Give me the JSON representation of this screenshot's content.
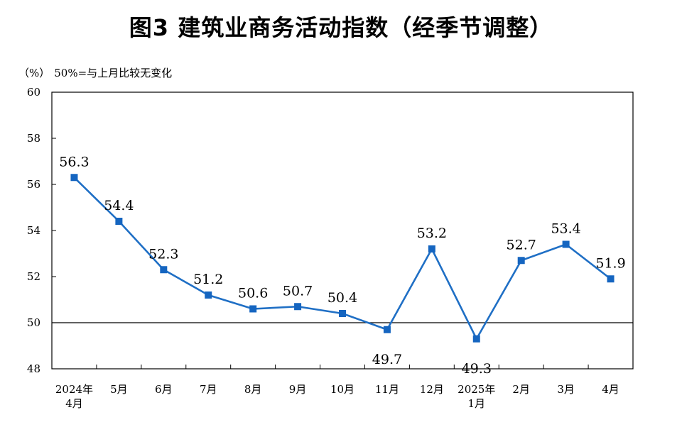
{
  "title": "图3  建筑业商务活动指数（经季节调整）",
  "unit_label": "（%）",
  "baseline_note": "50%=与上月比较无变化",
  "colors": {
    "line": "#1f6fc5",
    "marker": "#1565c0",
    "axis": "#000000"
  },
  "chart_data": {
    "type": "line",
    "categories": [
      "2024年\n4月",
      "5月",
      "6月",
      "7月",
      "8月",
      "9月",
      "10月",
      "11月",
      "12月",
      "2025年\n1月",
      "2月",
      "3月",
      "4月"
    ],
    "series": [
      {
        "values": [
          56.3,
          54.4,
          52.3,
          51.2,
          50.6,
          50.7,
          50.4,
          49.7,
          53.2,
          49.3,
          52.7,
          53.4,
          51.9
        ]
      }
    ],
    "ylim": [
      48,
      60
    ],
    "yticks": [
      48,
      50,
      52,
      54,
      56,
      58,
      60
    ],
    "reference_line": 50,
    "grid": false,
    "legend": "none"
  }
}
